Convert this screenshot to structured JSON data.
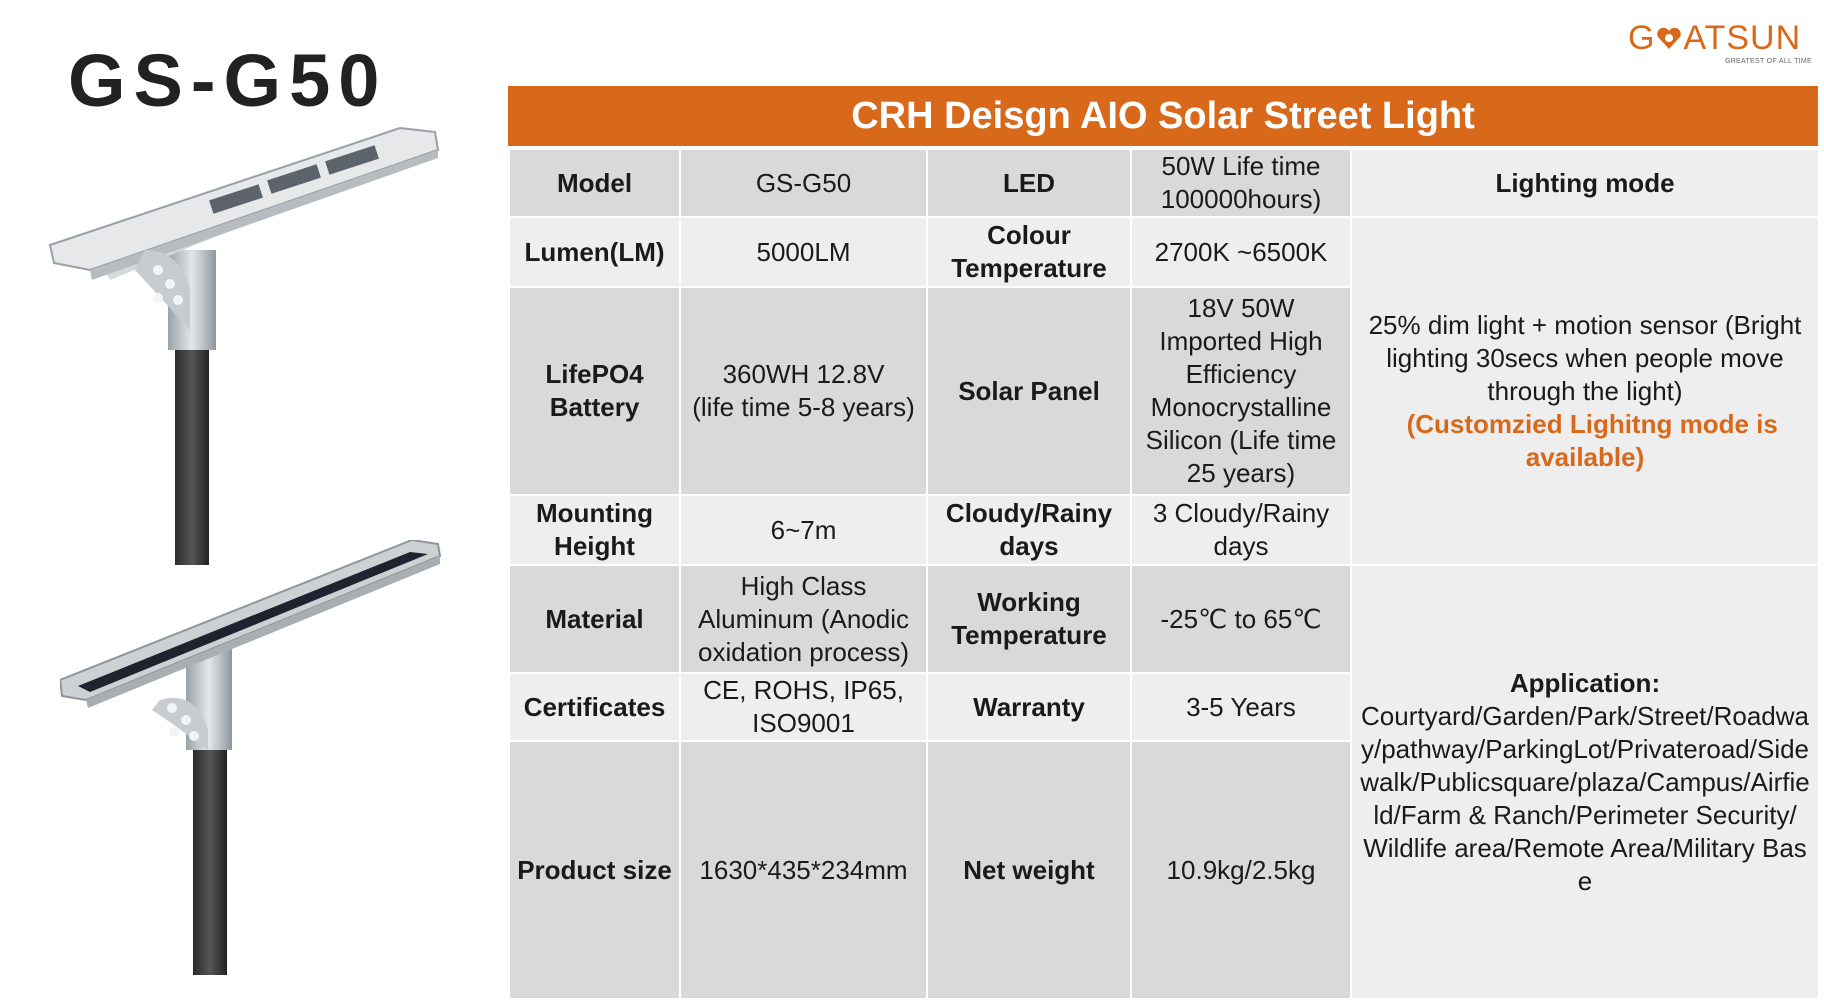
{
  "model": "GS-G50",
  "brand": {
    "name_left": "G",
    "name_right": "ATSUN",
    "tagline": "GREATEST OF ALL TIME",
    "color": "#d8691a"
  },
  "banner": {
    "title": "CRH Deisgn AIO Solar Street Light"
  },
  "spec": {
    "model_label": "Model",
    "model_value": "GS-G50",
    "led_label": "LED",
    "led_value": "50W Life time 100000hours)",
    "lighting_mode_label": "Lighting mode",
    "lumen_label": "Lumen(LM)",
    "lumen_value": "5000LM",
    "colour_temp_label": "Colour Temperature",
    "colour_temp_value": "2700K ~6500K",
    "battery_label": "LifePO4 Battery",
    "battery_value_1": "360WH 12.8V",
    "battery_value_2": "(life time 5-8 years)",
    "solar_panel_label": "Solar Panel",
    "solar_panel_value": "18V 50W Imported High Efficiency Monocrystalline Silicon (Life time 25 years)",
    "mounting_label": "Mounting Height",
    "mounting_value": "6~7m",
    "cloudy_label": "Cloudy/Rainy days",
    "cloudy_value": "3 Cloudy/Rainy days",
    "material_label": "Material",
    "material_value": "High Class Aluminum (Anodic oxidation process)",
    "working_temp_label": "Working Temperature",
    "working_temp_value": "-25℃ to 65℃",
    "certificates_label": "Certificates",
    "certificates_value": "CE, ROHS, IP65, ISO9001",
    "warranty_label": "Warranty",
    "warranty_value": "3-5 Years",
    "size_label": "Product size",
    "size_value": "1630*435*234mm",
    "weight_label": "Net weight",
    "weight_value": "10.9kg/2.5kg",
    "lighting_mode_text": "25% dim light + motion sensor (Bright lighting 30secs when people move through the light)",
    "lighting_mode_note": "(Customzied Lighitng mode is available)",
    "application_title": "Application:",
    "application_text": "Courtyard/Garden/Park/Street/Roadway/pathway/ParkingLot/Privateroad/Sidewalk/Publicsquare/plaza/Campus/Airfield/Farm & Ranch/Perimeter Security/ Wildlife area/Remote Area/Military Base"
  }
}
